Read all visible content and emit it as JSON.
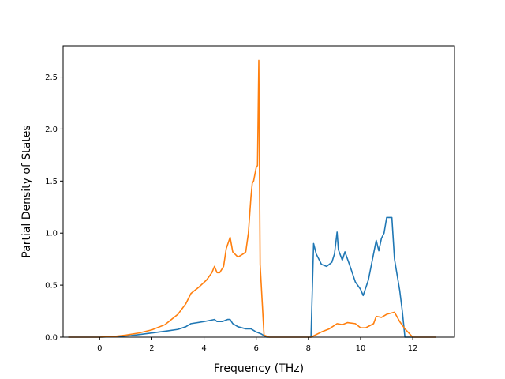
{
  "chart_data": {
    "type": "line",
    "title": "",
    "xlabel": "Frequency (THz)",
    "ylabel": "Partial Density of States",
    "xlim": [
      -1.4,
      13.6
    ],
    "ylim": [
      0,
      2.8
    ],
    "xticks": [
      0,
      2,
      4,
      6,
      8,
      10,
      12
    ],
    "xtick_labels": [
      "0",
      "2",
      "4",
      "6",
      "8",
      "10",
      "12"
    ],
    "yticks": [
      0.0,
      0.5,
      1.0,
      1.5,
      2.0,
      2.5
    ],
    "ytick_labels": [
      "0.0",
      "0.5",
      "1.0",
      "1.5",
      "2.0",
      "2.5"
    ],
    "grid": false,
    "legend": "none",
    "series": [
      {
        "color": "#1f77b4",
        "x": [
          -1.2,
          0.0,
          0.6,
          1.2,
          2.0,
          2.6,
          3.0,
          3.3,
          3.5,
          4.0,
          4.4,
          4.5,
          4.7,
          4.9,
          5.0,
          5.1,
          5.3,
          5.6,
          5.8,
          6.0,
          6.2,
          6.4,
          7.0,
          8.1,
          8.15,
          8.2,
          8.3,
          8.5,
          8.7,
          8.9,
          9.0,
          9.1,
          9.15,
          9.3,
          9.4,
          9.6,
          9.8,
          10.0,
          10.1,
          10.3,
          10.6,
          10.7,
          10.8,
          10.9,
          11.0,
          11.1,
          11.2,
          11.3,
          11.5,
          11.6,
          11.7,
          12.9
        ],
        "y": [
          0.0,
          0.0,
          0.005,
          0.015,
          0.04,
          0.06,
          0.075,
          0.1,
          0.13,
          0.15,
          0.17,
          0.15,
          0.15,
          0.17,
          0.17,
          0.13,
          0.1,
          0.08,
          0.08,
          0.05,
          0.03,
          0.0,
          0.0,
          0.0,
          0.45,
          0.9,
          0.8,
          0.7,
          0.68,
          0.72,
          0.8,
          1.01,
          0.84,
          0.74,
          0.82,
          0.68,
          0.53,
          0.46,
          0.4,
          0.55,
          0.93,
          0.83,
          0.95,
          1.0,
          1.15,
          1.15,
          1.15,
          0.75,
          0.45,
          0.25,
          0.0,
          0.0
        ]
      },
      {
        "color": "#ff7f0e",
        "x": [
          -1.2,
          0.0,
          0.5,
          1.0,
          1.5,
          2.0,
          2.5,
          3.0,
          3.3,
          3.5,
          3.8,
          4.1,
          4.3,
          4.4,
          4.5,
          4.6,
          4.75,
          4.85,
          5.0,
          5.1,
          5.3,
          5.5,
          5.6,
          5.7,
          5.8,
          5.85,
          5.9,
          6.0,
          6.05,
          6.1,
          6.15,
          6.3,
          6.5,
          7.0,
          8.1,
          8.5,
          8.8,
          9.1,
          9.3,
          9.5,
          9.8,
          10.0,
          10.2,
          10.5,
          10.6,
          10.8,
          11.0,
          11.3,
          11.5,
          11.7,
          12.0,
          12.9
        ],
        "y": [
          0.0,
          0.0,
          0.005,
          0.02,
          0.04,
          0.07,
          0.12,
          0.22,
          0.32,
          0.42,
          0.48,
          0.55,
          0.62,
          0.68,
          0.62,
          0.62,
          0.68,
          0.85,
          0.96,
          0.82,
          0.77,
          0.8,
          0.82,
          1.0,
          1.35,
          1.48,
          1.5,
          1.63,
          1.65,
          2.66,
          0.7,
          0.02,
          0.0,
          0.0,
          0.0,
          0.05,
          0.08,
          0.13,
          0.12,
          0.14,
          0.13,
          0.09,
          0.09,
          0.13,
          0.2,
          0.19,
          0.22,
          0.24,
          0.15,
          0.08,
          0.0,
          0.0
        ]
      }
    ]
  }
}
